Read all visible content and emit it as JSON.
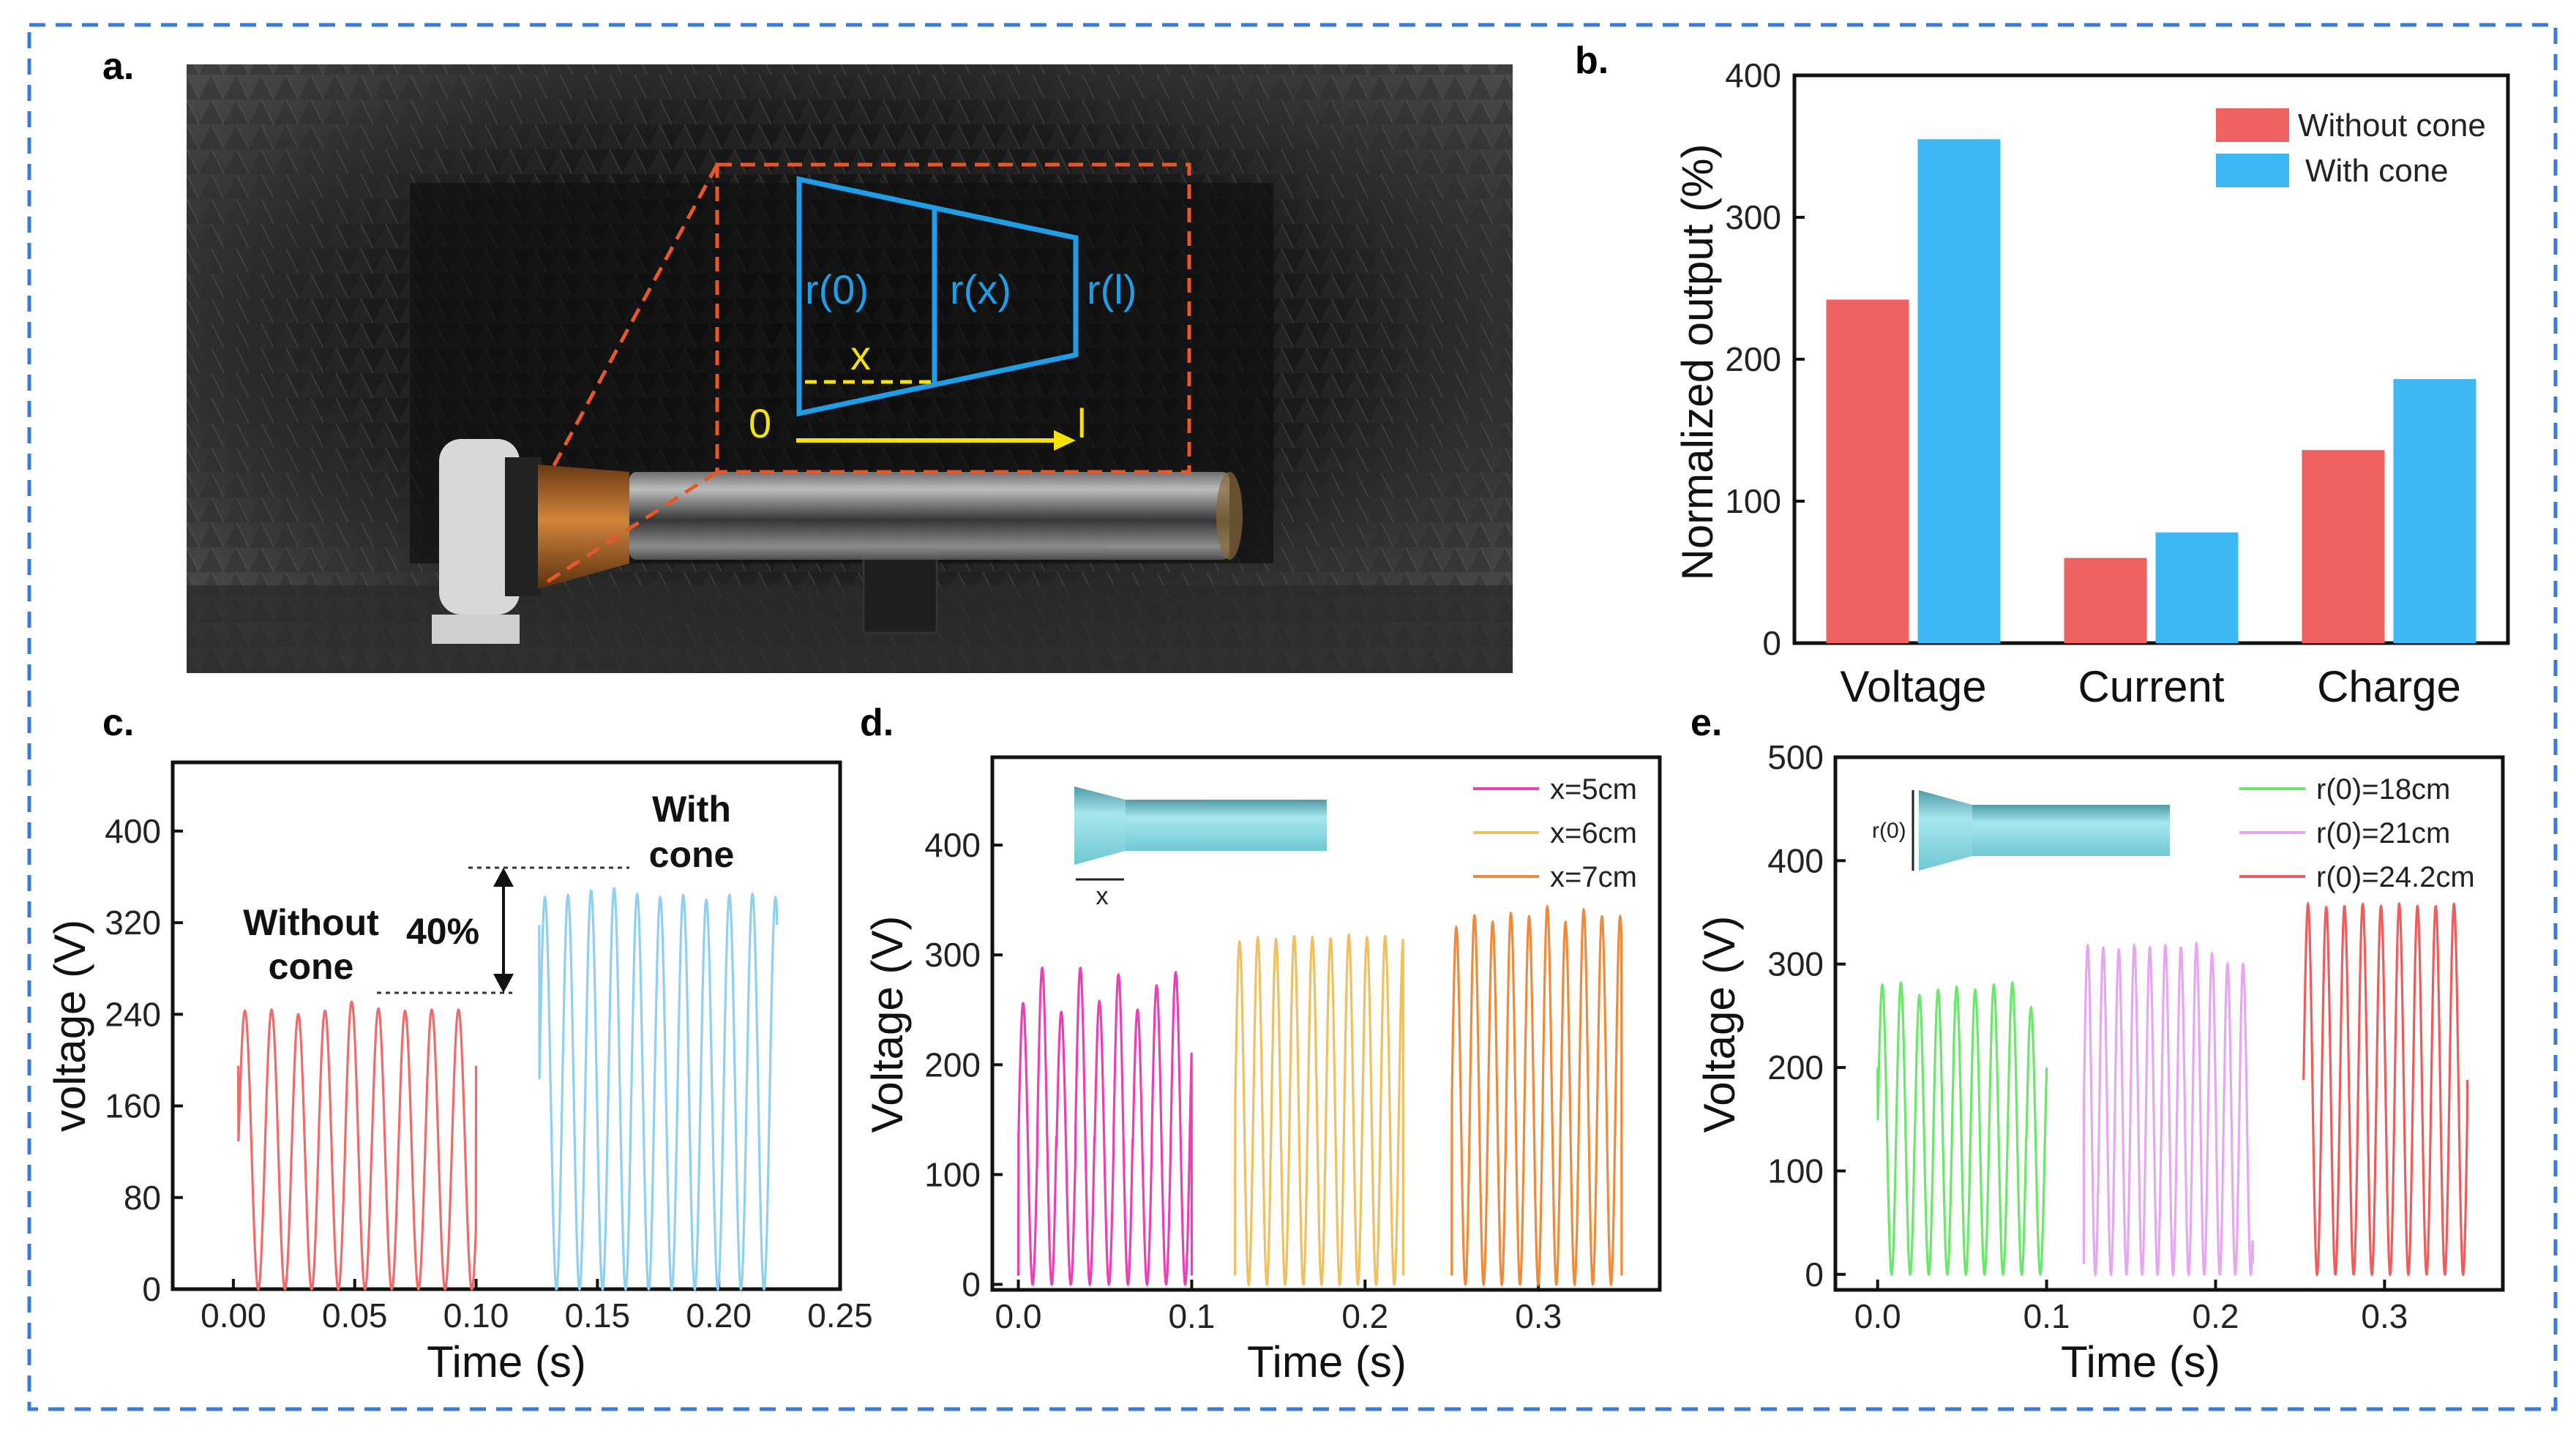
{
  "panels": {
    "a": "a.",
    "b": "b.",
    "c": "c.",
    "d": "d.",
    "e": "e."
  },
  "photo": {
    "labels": {
      "r0": "r(0)",
      "rx": "r(x)",
      "rl": "r(l)",
      "x": "x",
      "zero": "0",
      "l": "l"
    },
    "colors": {
      "shape": "#1e9ee6",
      "label_yellow": "#f5e20a",
      "inset_frame": "#e8572a"
    }
  },
  "chart_data": [
    {
      "id": "b",
      "type": "bar",
      "title": "",
      "categories": [
        "Voltage",
        "Current",
        "Charge"
      ],
      "series": [
        {
          "name": "Without cone",
          "color": "#f06262",
          "values": [
            242,
            60,
            136
          ]
        },
        {
          "name": "With cone",
          "color": "#3db8f5",
          "values": [
            355,
            78,
            186
          ]
        }
      ],
      "xlabel": "",
      "ylabel": "Normalized output (%)",
      "ylim": [
        0,
        400
      ],
      "yticks": [
        "0",
        "100",
        "200",
        "300",
        "400"
      ],
      "legend": "top-right"
    },
    {
      "id": "c",
      "type": "line",
      "xlabel": "Time (s)",
      "ylabel": "voltage (V)",
      "xlim": [
        -0.025,
        0.25
      ],
      "ylim": [
        0,
        460
      ],
      "xticks": [
        "0.00",
        "0.05",
        "0.10",
        "0.15",
        "0.20",
        "0.25"
      ],
      "yticks": [
        "0",
        "80",
        "160",
        "240",
        "320",
        "400"
      ],
      "series": [
        {
          "name": "Without cone",
          "color": "#f06a6a",
          "t_start": 0.002,
          "t_end": 0.1,
          "period": 0.011,
          "peaks": [
            243,
            244,
            240,
            243,
            251,
            245,
            243,
            244
          ],
          "offset": 195
        },
        {
          "name": "With cone",
          "color": "#8fd0f2",
          "t_start": 0.126,
          "t_end": 0.224,
          "period": 0.0095,
          "peaks": [
            342,
            344,
            348,
            350,
            345,
            342,
            344,
            340,
            344,
            345,
            342
          ],
          "offset": 318
        }
      ],
      "annotations": {
        "without": [
          "Without",
          "cone"
        ],
        "with": [
          "With",
          "cone"
        ],
        "increase": "40%"
      }
    },
    {
      "id": "d",
      "type": "line",
      "xlabel": "Time (s)",
      "ylabel": "Voltage (V)",
      "xlim": [
        -0.015,
        0.37
      ],
      "ylim": [
        -5,
        480
      ],
      "xticks": [
        "0.0",
        "0.1",
        "0.2",
        "0.3"
      ],
      "yticks": [
        "0",
        "100",
        "200",
        "300",
        "400"
      ],
      "legend": "top-right",
      "inset_label": "x",
      "series": [
        {
          "name": "x=5cm",
          "color": "#ec3fb4",
          "t_start": 0.0,
          "t_end": 0.1,
          "period": 0.011,
          "peaks": [
            256,
            288,
            248,
            288,
            258,
            282,
            250,
            272,
            284
          ],
          "offset": 8
        },
        {
          "name": "x=6cm",
          "color": "#f0c060",
          "t_start": 0.125,
          "t_end": 0.222,
          "period": 0.0105,
          "peaks": [
            312,
            316,
            314,
            317,
            316,
            315,
            318,
            316,
            317,
            316
          ],
          "offset": 8
        },
        {
          "name": "x=7cm",
          "color": "#f08a3a",
          "t_start": 0.25,
          "t_end": 0.348,
          "period": 0.0105,
          "peaks": [
            325,
            336,
            330,
            338,
            335,
            344,
            330,
            341,
            335
          ],
          "offset": 8
        }
      ]
    },
    {
      "id": "e",
      "type": "line",
      "xlabel": "Time (s)",
      "ylabel": "Voltage (V)",
      "xlim": [
        -0.025,
        0.37
      ],
      "ylim": [
        -15,
        500
      ],
      "xticks": [
        "0.0",
        "0.1",
        "0.2",
        "0.3"
      ],
      "yticks": [
        "0",
        "100",
        "200",
        "300",
        "400",
        "500"
      ],
      "legend": "top-right",
      "inset_label": "r(0)",
      "series": [
        {
          "name": "r(0)=18cm",
          "color": "#69e86a",
          "t_start": 0.0,
          "t_end": 0.1,
          "period": 0.011,
          "peaks": [
            280,
            282,
            270,
            275,
            278,
            275,
            280,
            282,
            258
          ],
          "offset": 200
        },
        {
          "name": "r(0)=21cm",
          "color": "#e6a6f2",
          "t_start": 0.122,
          "t_end": 0.222,
          "period": 0.0092,
          "peaks": [
            318,
            316,
            314,
            318,
            316,
            318,
            316,
            320,
            310,
            300
          ],
          "offset": 10
        },
        {
          "name": "r(0)=24.2cm",
          "color": "#f05c5c",
          "t_start": 0.252,
          "t_end": 0.349,
          "period": 0.0108,
          "peaks": [
            358,
            355,
            356,
            358,
            356,
            358,
            356,
            356,
            358
          ],
          "offset": 188
        }
      ]
    }
  ]
}
